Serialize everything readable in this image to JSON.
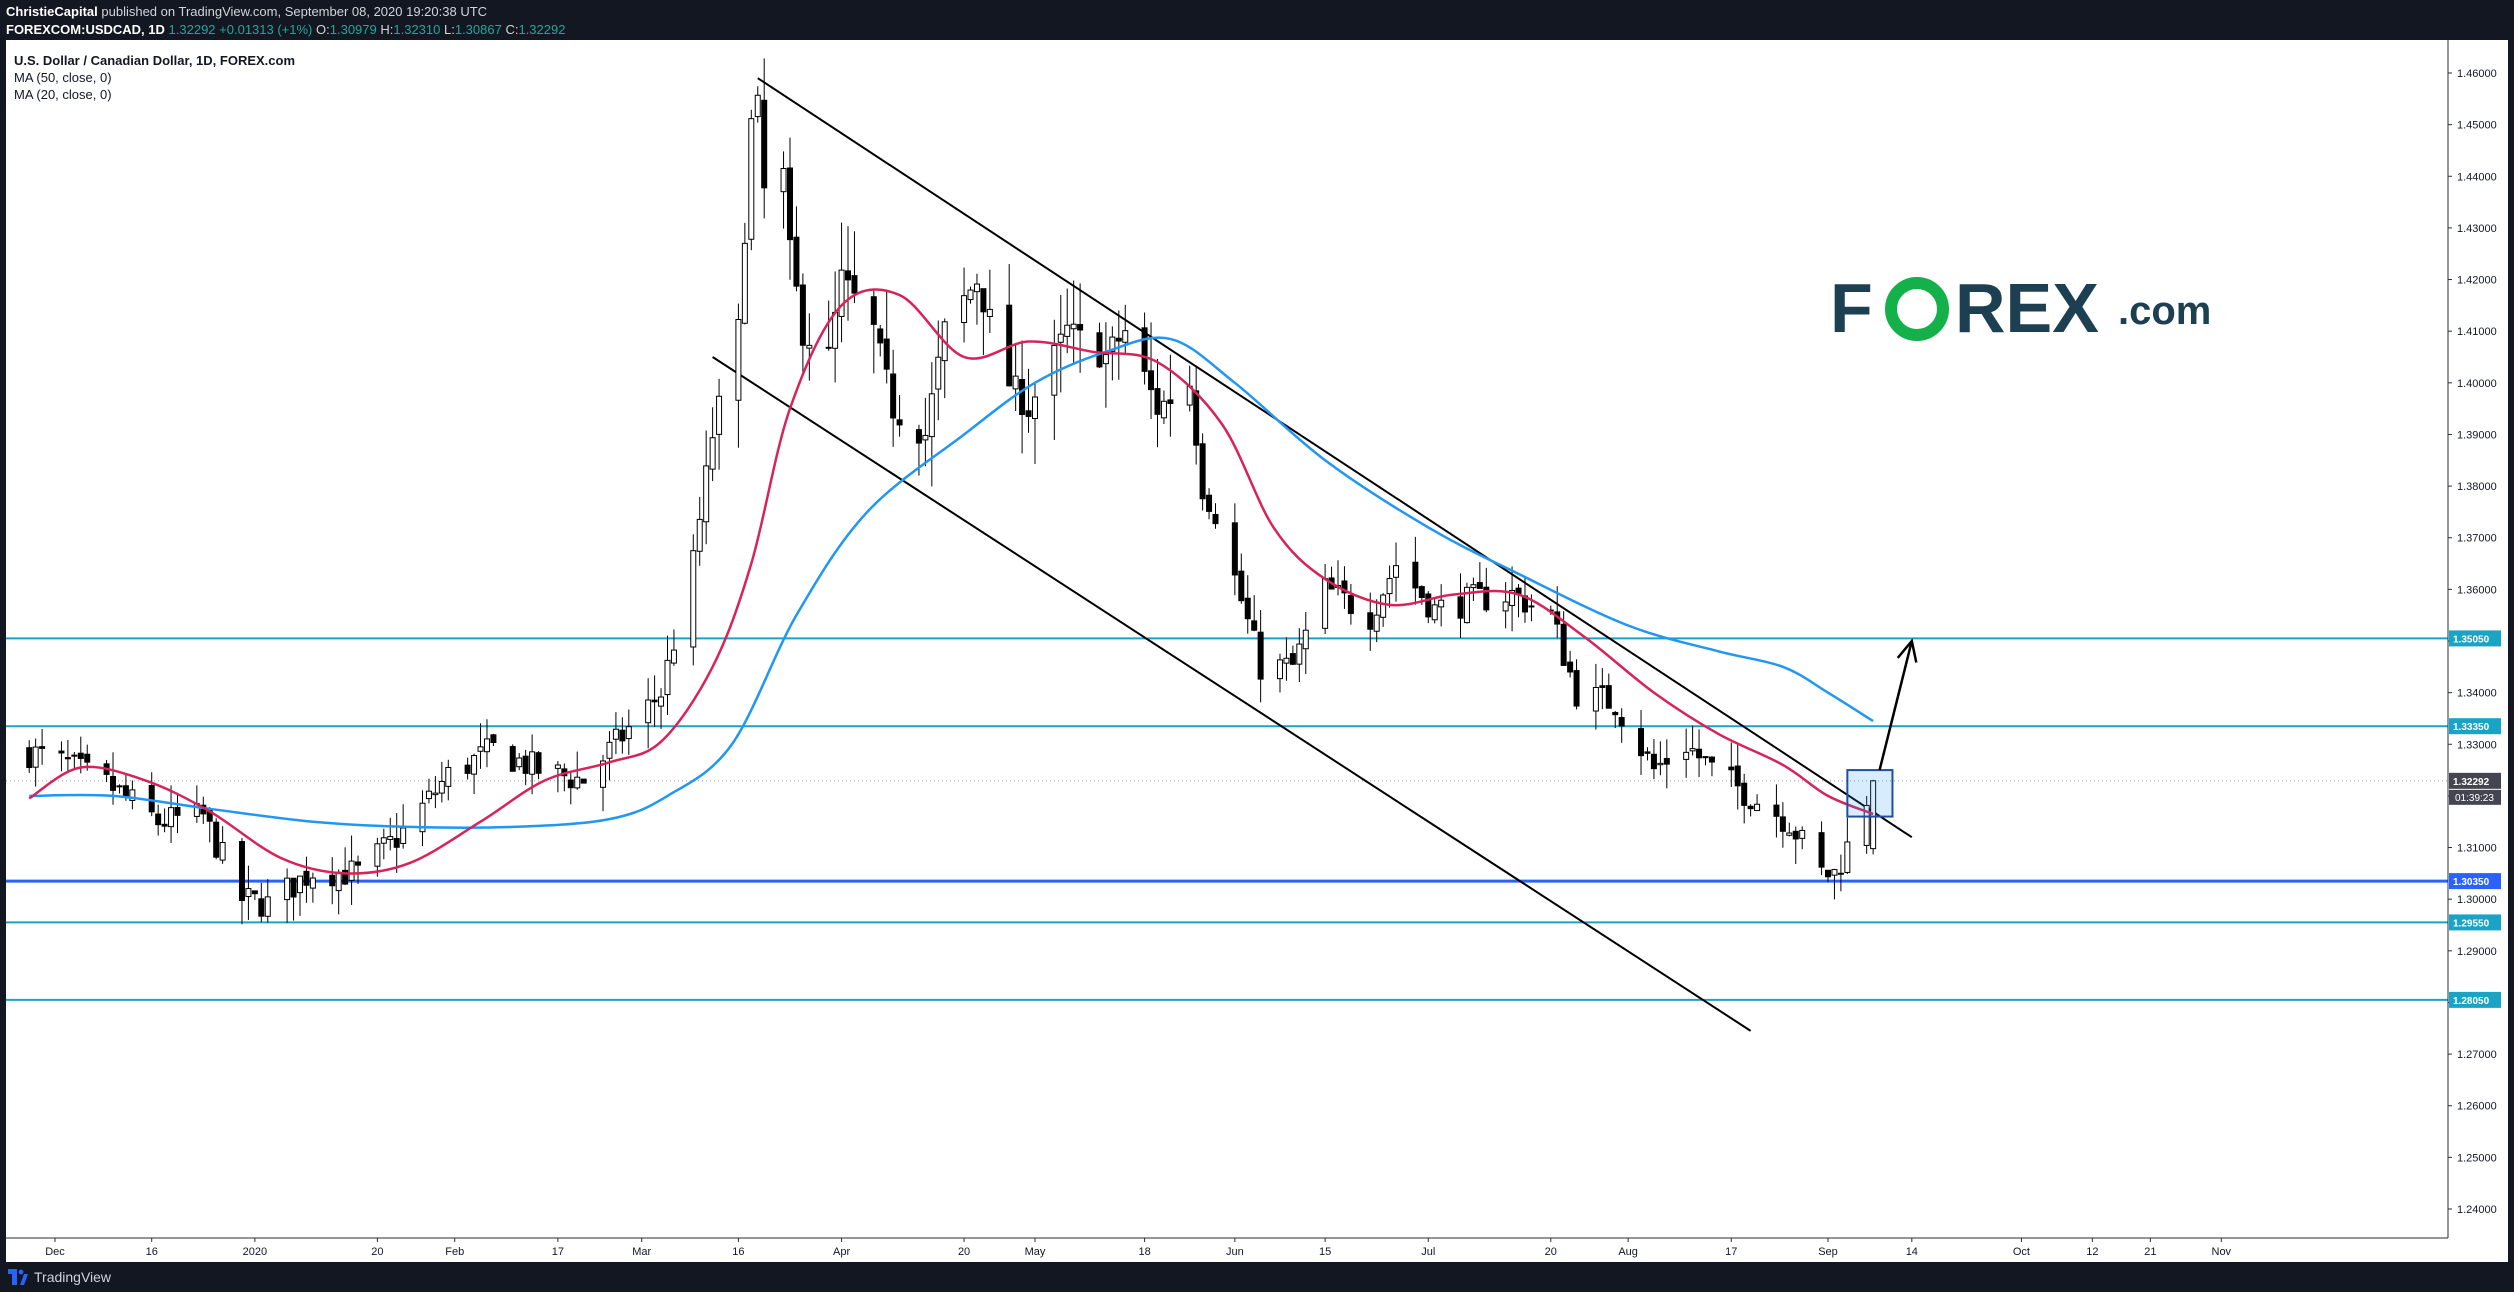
{
  "header": {
    "publisher": "ChristieCapital",
    "published_text": "published on TradingView.com, September 08, 2020 19:20:38 UTC",
    "symbol": "FOREXCOM:USDCAD, 1D",
    "last": "1.32292",
    "change": "+0.01313 (+1%)",
    "open_label": "O:",
    "open": "1.30979",
    "high_label": "H:",
    "high": "1.32310",
    "low_label": "L:",
    "low": "1.30867",
    "close_label": "C:",
    "close": "1.32292"
  },
  "legend": {
    "title": "U.S. Dollar / Canadian Dollar, 1D, FOREX.com",
    "ma50": "MA (50, close, 0)",
    "ma20": "MA (20, close, 0)"
  },
  "logo": {
    "text_part1": "F",
    "text_o": "O",
    "text_part2": "REX",
    "text_suffix": ".com",
    "color_dark": "#1c3f52",
    "color_green": "#14b04a"
  },
  "footer": {
    "brand": "TradingView"
  },
  "colors": {
    "ma50": "#2196f3",
    "ma20": "#d6245a",
    "hline": "#1aa3c4",
    "hline_main": "#2962ff",
    "countdown_bg": "#434651"
  },
  "chart_data": {
    "type": "candlestick",
    "title": "U.S. Dollar / Canadian Dollar, 1D, FOREX.com",
    "ylim": [
      1.235,
      1.465
    ],
    "y_ticks": [
      "1.46000",
      "1.45000",
      "1.44000",
      "1.43000",
      "1.42000",
      "1.41000",
      "1.40000",
      "1.39000",
      "1.38000",
      "1.37000",
      "1.36000",
      "1.35000",
      "1.34000",
      "1.33000",
      "1.32000",
      "1.31000",
      "1.30000",
      "1.29000",
      "1.28000",
      "1.27000",
      "1.26000",
      "1.25000",
      "1.24000"
    ],
    "x_ticks": [
      {
        "label": "Dec",
        "date": "2019-12-01"
      },
      {
        "label": "16",
        "date": "2019-12-16"
      },
      {
        "label": "2020",
        "date": "2020-01-01"
      },
      {
        "label": "20",
        "date": "2020-01-20"
      },
      {
        "label": "Feb",
        "date": "2020-02-01"
      },
      {
        "label": "17",
        "date": "2020-02-17"
      },
      {
        "label": "Mar",
        "date": "2020-03-01"
      },
      {
        "label": "16",
        "date": "2020-03-16"
      },
      {
        "label": "Apr",
        "date": "2020-04-01"
      },
      {
        "label": "20",
        "date": "2020-04-20"
      },
      {
        "label": "May",
        "date": "2020-05-01"
      },
      {
        "label": "18",
        "date": "2020-05-18"
      },
      {
        "label": "Jun",
        "date": "2020-06-01"
      },
      {
        "label": "15",
        "date": "2020-06-15"
      },
      {
        "label": "Jul",
        "date": "2020-07-01"
      },
      {
        "label": "20",
        "date": "2020-07-20"
      },
      {
        "label": "Aug",
        "date": "2020-08-01"
      },
      {
        "label": "17",
        "date": "2020-08-17"
      },
      {
        "label": "Sep",
        "date": "2020-09-01"
      },
      {
        "label": "14",
        "date": "2020-09-14"
      },
      {
        "label": "Oct",
        "date": "2020-10-01"
      },
      {
        "label": "12",
        "date": "2020-10-12"
      },
      {
        "label": "21",
        "date": "2020-10-21"
      },
      {
        "label": "Nov",
        "date": "2020-11-01"
      }
    ],
    "first_date": "2019-11-27",
    "last_date": "2020-09-08",
    "close_anchors": [
      [
        "2019-11-27",
        1.3285
      ],
      [
        "2019-12-03",
        1.326
      ],
      [
        "2019-12-10",
        1.3215
      ],
      [
        "2019-12-17",
        1.315
      ],
      [
        "2019-12-24",
        1.316
      ],
      [
        "2019-12-30",
        1.3
      ],
      [
        "2020-01-03",
        1.299
      ],
      [
        "2020-01-10",
        1.3055
      ],
      [
        "2020-01-17",
        1.305
      ],
      [
        "2020-01-24",
        1.313
      ],
      [
        "2020-01-31",
        1.324
      ],
      [
        "2020-02-07",
        1.329
      ],
      [
        "2020-02-14",
        1.325
      ],
      [
        "2020-02-21",
        1.323
      ],
      [
        "2020-02-28",
        1.333
      ],
      [
        "2020-03-04",
        1.34
      ],
      [
        "2020-03-09",
        1.365
      ],
      [
        "2020-03-12",
        1.39
      ],
      [
        "2020-03-16",
        1.41
      ],
      [
        "2020-03-18",
        1.45
      ],
      [
        "2020-03-19",
        1.453
      ],
      [
        "2020-03-20",
        1.437
      ],
      [
        "2020-03-23",
        1.44
      ],
      [
        "2020-03-24",
        1.425
      ],
      [
        "2020-03-26",
        1.41
      ],
      [
        "2020-03-30",
        1.405
      ],
      [
        "2020-04-01",
        1.42
      ],
      [
        "2020-04-06",
        1.41
      ],
      [
        "2020-04-09",
        1.395
      ],
      [
        "2020-04-14",
        1.39
      ],
      [
        "2020-04-17",
        1.41
      ],
      [
        "2020-04-22",
        1.42
      ],
      [
        "2020-04-27",
        1.4
      ],
      [
        "2020-04-30",
        1.395
      ],
      [
        "2020-05-06",
        1.41
      ],
      [
        "2020-05-12",
        1.405
      ],
      [
        "2020-05-15",
        1.41
      ],
      [
        "2020-05-20",
        1.395
      ],
      [
        "2020-05-25",
        1.4
      ],
      [
        "2020-05-27",
        1.38
      ],
      [
        "2020-05-29",
        1.375
      ],
      [
        "2020-06-05",
        1.345
      ],
      [
        "2020-06-10",
        1.345
      ],
      [
        "2020-06-15",
        1.36
      ],
      [
        "2020-06-22",
        1.355
      ],
      [
        "2020-06-26",
        1.365
      ],
      [
        "2020-07-02",
        1.356
      ],
      [
        "2020-07-08",
        1.358
      ],
      [
        "2020-07-14",
        1.359
      ],
      [
        "2020-07-20",
        1.355
      ],
      [
        "2020-07-24",
        1.34
      ],
      [
        "2020-07-30",
        1.338
      ],
      [
        "2020-08-05",
        1.325
      ],
      [
        "2020-08-10",
        1.33
      ],
      [
        "2020-08-14",
        1.325
      ],
      [
        "2020-08-20",
        1.32
      ],
      [
        "2020-08-26",
        1.315
      ],
      [
        "2020-08-31",
        1.305
      ],
      [
        "2020-09-02",
        1.305
      ],
      [
        "2020-09-04",
        1.31
      ],
      [
        "2020-09-08",
        1.32292
      ]
    ],
    "ma20_points": [
      [
        "2019-11-27",
        1.3195
      ],
      [
        "2019-12-05",
        1.3255
      ],
      [
        "2019-12-15",
        1.323
      ],
      [
        "2019-12-25",
        1.317
      ],
      [
        "2020-01-05",
        1.308
      ],
      [
        "2020-01-15",
        1.305
      ],
      [
        "2020-01-25",
        1.307
      ],
      [
        "2020-02-05",
        1.315
      ],
      [
        "2020-02-15",
        1.323
      ],
      [
        "2020-02-25",
        1.3265
      ],
      [
        "2020-03-04",
        1.3305
      ],
      [
        "2020-03-12",
        1.345
      ],
      [
        "2020-03-18",
        1.365
      ],
      [
        "2020-03-24",
        1.395
      ],
      [
        "2020-04-01",
        1.415
      ],
      [
        "2020-04-10",
        1.417
      ],
      [
        "2020-04-20",
        1.405
      ],
      [
        "2020-04-30",
        1.408
      ],
      [
        "2020-05-10",
        1.406
      ],
      [
        "2020-05-20",
        1.404
      ],
      [
        "2020-05-30",
        1.392
      ],
      [
        "2020-06-07",
        1.372
      ],
      [
        "2020-06-15",
        1.362
      ],
      [
        "2020-06-25",
        1.357
      ],
      [
        "2020-07-05",
        1.359
      ],
      [
        "2020-07-15",
        1.359
      ],
      [
        "2020-07-25",
        1.351
      ],
      [
        "2020-08-05",
        1.34
      ],
      [
        "2020-08-15",
        1.332
      ],
      [
        "2020-08-25",
        1.326
      ],
      [
        "2020-09-01",
        1.32
      ],
      [
        "2020-09-08",
        1.3165
      ]
    ],
    "ma50_points": [
      [
        "2019-11-27",
        1.32
      ],
      [
        "2019-12-10",
        1.32
      ],
      [
        "2019-12-25",
        1.3175
      ],
      [
        "2020-01-10",
        1.315
      ],
      [
        "2020-01-25",
        1.314
      ],
      [
        "2020-02-10",
        1.314
      ],
      [
        "2020-02-25",
        1.3155
      ],
      [
        "2020-03-05",
        1.32
      ],
      [
        "2020-03-15",
        1.33
      ],
      [
        "2020-03-25",
        1.355
      ],
      [
        "2020-04-05",
        1.375
      ],
      [
        "2020-04-20",
        1.39
      ],
      [
        "2020-05-01",
        1.4
      ],
      [
        "2020-05-12",
        1.406
      ],
      [
        "2020-05-22",
        1.4085
      ],
      [
        "2020-06-01",
        1.4
      ],
      [
        "2020-06-15",
        1.385
      ],
      [
        "2020-07-01",
        1.372
      ],
      [
        "2020-07-15",
        1.363
      ],
      [
        "2020-08-01",
        1.353
      ],
      [
        "2020-08-15",
        1.348
      ],
      [
        "2020-08-25",
        1.345
      ],
      [
        "2020-09-01",
        1.34
      ],
      [
        "2020-09-08",
        1.3345
      ]
    ],
    "horizontal_levels": [
      {
        "value": 1.3505,
        "label": "1.35050",
        "style": "light"
      },
      {
        "value": 1.3335,
        "label": "1.33350",
        "style": "light"
      },
      {
        "value": 1.3035,
        "label": "1.30350",
        "style": "main"
      },
      {
        "value": 1.2955,
        "label": "1.29550",
        "style": "light"
      },
      {
        "value": 1.2805,
        "label": "1.28050",
        "style": "light"
      }
    ],
    "last_price": {
      "value": 1.32292,
      "label": "1.32292",
      "countdown": "01:39:23"
    },
    "trendlines": [
      {
        "from": [
          "2020-03-19",
          1.459
        ],
        "to": [
          "2020-09-14",
          1.312
        ]
      },
      {
        "from": [
          "2020-03-12",
          1.405
        ],
        "to": [
          "2020-08-20",
          1.2745
        ]
      }
    ],
    "arrow": {
      "from": [
        "2020-09-09",
        1.325
      ],
      "to": [
        "2020-09-14",
        1.35
      ]
    },
    "highlight_box": {
      "from": [
        "2020-09-04",
        1.325
      ],
      "to": [
        "2020-09-11",
        1.316
      ]
    }
  }
}
